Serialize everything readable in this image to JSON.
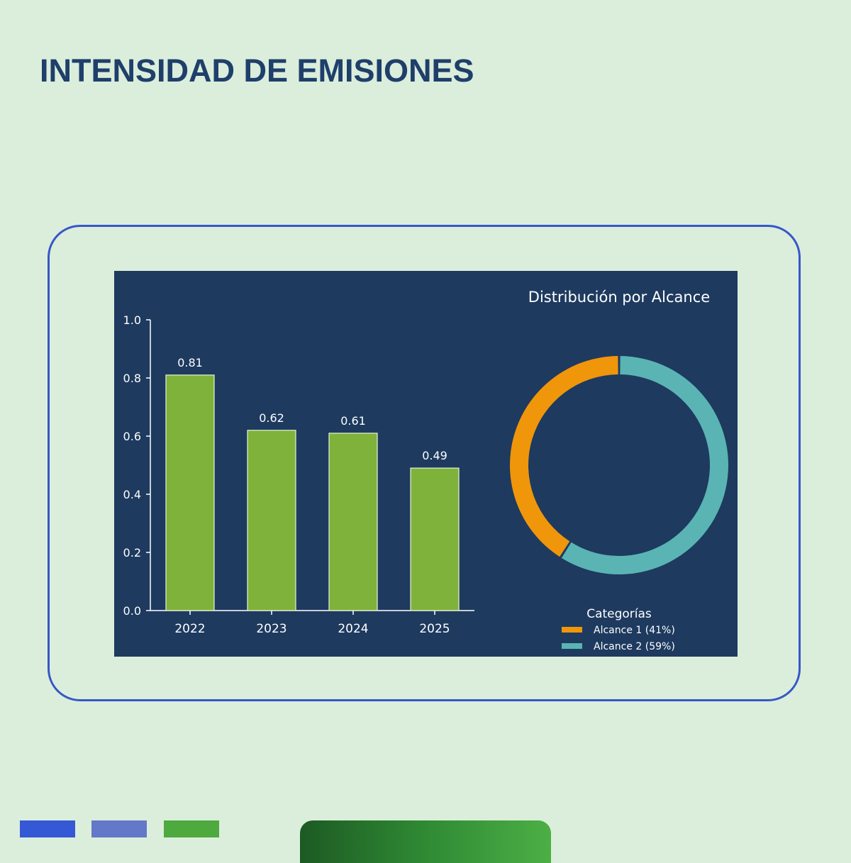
{
  "page": {
    "title": "INTENSIDAD DE EMISIONES"
  },
  "colors": {
    "background": "#dbeedb",
    "title": "#1f3f6b",
    "frame_border": "#3757c8",
    "panel": "#1e3a5f",
    "bar": "#7fb23a",
    "alcance1": "#f0960a",
    "alcance2": "#5ab4b4",
    "swatches": [
      "#3558d6",
      "#6378c8",
      "#4ea93f"
    ]
  },
  "chart_data": [
    {
      "type": "bar",
      "categories": [
        "2022",
        "2023",
        "2024",
        "2025"
      ],
      "values": [
        0.81,
        0.62,
        0.61,
        0.49
      ],
      "data_labels": [
        "0.81",
        "0.62",
        "0.61",
        "0.49"
      ],
      "ylim": [
        0,
        1.0
      ],
      "yticks": [
        "0.0",
        "0.2",
        "0.4",
        "0.6",
        "0.8",
        "1.0"
      ],
      "xlabel": "",
      "ylabel": "",
      "grid": false
    },
    {
      "type": "pie",
      "title": "Distribución por Alcance",
      "legend_title": "Categorías",
      "legend_position": "bottom-right",
      "donut": true,
      "slices": [
        {
          "label": "Alcance 1 (41%)",
          "value": 41,
          "color": "#f0960a"
        },
        {
          "label": "Alcance 2 (59%)",
          "value": 59,
          "color": "#5ab4b4"
        }
      ]
    }
  ]
}
